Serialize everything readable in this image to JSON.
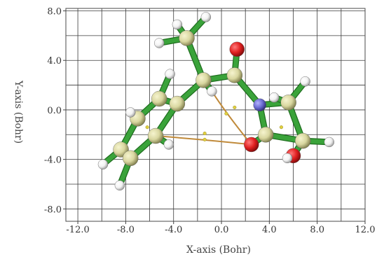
{
  "chart_data": {
    "type": "scatter",
    "title": "",
    "xlabel": "X-axis (Bohr)",
    "ylabel": "Y-axis (Bohr)",
    "xlim": [
      -13,
      12
    ],
    "ylim": [
      -9,
      8.2
    ],
    "x_ticks": [
      "-12.0",
      "-8.0",
      "-4.0",
      "0.0",
      "4.0",
      "8.0",
      "12.0"
    ],
    "y_ticks": [
      "8.0",
      "4.0",
      "0.0",
      "-4.0",
      "-8.0"
    ],
    "grid": true,
    "colors": {
      "carbon": "#d9d7a0",
      "hydrogen": "#f2f2f2",
      "oxygen": "#e02020",
      "nitrogen": "#6a6ad0",
      "bond": "#3aa33a",
      "weak_bond": "#c08a3a",
      "critical_point": "#e0d040"
    },
    "atoms": [
      {
        "id": "C1",
        "element": "C",
        "x": -2.9,
        "y": 5.8
      },
      {
        "id": "H1",
        "element": "H",
        "x": -3.7,
        "y": 6.9
      },
      {
        "id": "H2",
        "element": "H",
        "x": -1.3,
        "y": 7.5
      },
      {
        "id": "H3",
        "element": "H",
        "x": -5.2,
        "y": 5.4
      },
      {
        "id": "C2",
        "element": "C",
        "x": -1.5,
        "y": 2.4
      },
      {
        "id": "H4",
        "element": "H",
        "x": -0.8,
        "y": 1.5
      },
      {
        "id": "C3",
        "element": "C",
        "x": 1.1,
        "y": 2.8
      },
      {
        "id": "O1",
        "element": "O",
        "x": 1.3,
        "y": 4.9
      },
      {
        "id": "N1",
        "element": "N",
        "x": 3.2,
        "y": 0.4
      },
      {
        "id": "H5",
        "element": "H",
        "x": 4.4,
        "y": 1.0
      },
      {
        "id": "C4",
        "element": "C",
        "x": 5.6,
        "y": 0.6
      },
      {
        "id": "H6",
        "element": "H",
        "x": 7.0,
        "y": 2.3
      },
      {
        "id": "C5",
        "element": "C",
        "x": 6.8,
        "y": -2.5
      },
      {
        "id": "H7",
        "element": "H",
        "x": 9.0,
        "y": -2.6
      },
      {
        "id": "O2",
        "element": "O",
        "x": 6.0,
        "y": -3.7
      },
      {
        "id": "H8",
        "element": "H",
        "x": 5.5,
        "y": -3.9
      },
      {
        "id": "C6",
        "element": "C",
        "x": 3.7,
        "y": -2.0
      },
      {
        "id": "O3",
        "element": "O",
        "x": 2.5,
        "y": -2.8
      },
      {
        "id": "C7",
        "element": "C",
        "x": -3.7,
        "y": 0.5
      },
      {
        "id": "C8",
        "element": "C",
        "x": -5.2,
        "y": 0.9
      },
      {
        "id": "H9",
        "element": "H",
        "x": -4.3,
        "y": 2.9
      },
      {
        "id": "C9",
        "element": "C",
        "x": -7.0,
        "y": -0.7
      },
      {
        "id": "H10",
        "element": "H",
        "x": -7.6,
        "y": -0.2
      },
      {
        "id": "C10",
        "element": "C",
        "x": -5.5,
        "y": -2.1
      },
      {
        "id": "H11",
        "element": "H",
        "x": -4.4,
        "y": -2.8
      },
      {
        "id": "C11",
        "element": "C",
        "x": -8.4,
        "y": -3.2
      },
      {
        "id": "H12",
        "element": "H",
        "x": -9.9,
        "y": -4.4
      },
      {
        "id": "C12",
        "element": "C",
        "x": -7.6,
        "y": -3.9
      },
      {
        "id": "H13",
        "element": "H",
        "x": -8.5,
        "y": -6.1
      }
    ],
    "bonds": [
      [
        "C1",
        "H1"
      ],
      [
        "C1",
        "H2"
      ],
      [
        "C1",
        "H3"
      ],
      [
        "C1",
        "C2"
      ],
      [
        "C2",
        "H4"
      ],
      [
        "C2",
        "C3"
      ],
      [
        "C3",
        "O1"
      ],
      [
        "C3",
        "N1"
      ],
      [
        "N1",
        "C4"
      ],
      [
        "N1",
        "C6"
      ],
      [
        "C4",
        "H5"
      ],
      [
        "C4",
        "H6"
      ],
      [
        "C4",
        "C5"
      ],
      [
        "C5",
        "H7"
      ],
      [
        "C5",
        "O2"
      ],
      [
        "O2",
        "H8"
      ],
      [
        "C5",
        "C6"
      ],
      [
        "C6",
        "O3"
      ],
      [
        "C2",
        "C7"
      ],
      [
        "C7",
        "C8"
      ],
      [
        "C7",
        "C10"
      ],
      [
        "C8",
        "H9"
      ],
      [
        "C8",
        "C9"
      ],
      [
        "C9",
        "H10"
      ],
      [
        "C9",
        "C11"
      ],
      [
        "C10",
        "H11"
      ],
      [
        "C10",
        "C12"
      ],
      [
        "C11",
        "H12"
      ],
      [
        "C11",
        "C12"
      ],
      [
        "C12",
        "H13"
      ]
    ],
    "weak_paths": [
      {
        "from": "H4",
        "to": "O3",
        "via": [
          0.4,
          -0.3
        ]
      },
      {
        "from": "O3",
        "to": "C10",
        "via": [
          -1.4,
          -2.4
        ]
      }
    ],
    "critical_points": [
      {
        "x": 1.1,
        "y": 0.2
      },
      {
        "x": -1.4,
        "y": -1.9
      },
      {
        "x": -6.2,
        "y": -1.4
      },
      {
        "x": 5.0,
        "y": -1.4
      },
      {
        "x": 0.4,
        "y": -0.3
      },
      {
        "x": -1.4,
        "y": -2.4
      }
    ]
  }
}
